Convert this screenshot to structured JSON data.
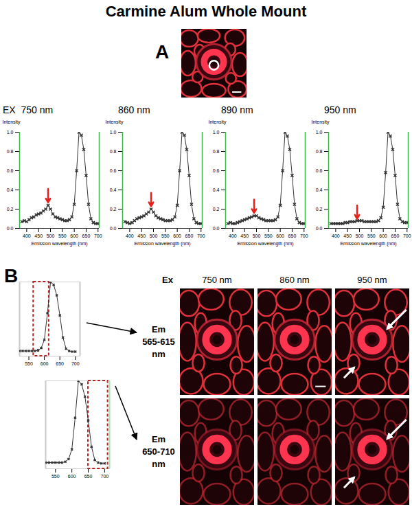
{
  "title": "Carmine Alum Whole Mount",
  "panel_labels": [
    "A",
    "B"
  ],
  "spectra_header_prefix": "EX",
  "chart_data": [
    {
      "type": "line",
      "panel": "A",
      "title": "750 nm",
      "x_label": "Emission wavelength (nm)",
      "y_label": "Intensity",
      "x": [
        380,
        390,
        400,
        410,
        420,
        430,
        440,
        450,
        460,
        470,
        480,
        490,
        500,
        510,
        520,
        530,
        540,
        550,
        560,
        570,
        580,
        590,
        600,
        610,
        620,
        630,
        640,
        650,
        660,
        670,
        680,
        690,
        700
      ],
      "values": [
        0.07,
        0.08,
        0.07,
        0.09,
        0.11,
        0.12,
        0.14,
        0.15,
        0.16,
        0.18,
        0.2,
        0.24,
        0.2,
        0.15,
        0.12,
        0.11,
        0.1,
        0.09,
        0.08,
        0.08,
        0.09,
        0.12,
        0.25,
        0.6,
        1.0,
        0.97,
        0.82,
        0.55,
        0.25,
        0.1,
        0.06,
        0.05,
        0.05
      ],
      "color": "#333333",
      "marker": "x",
      "line_style": "solid",
      "xlim": [
        370,
        705
      ],
      "xticks": [
        400,
        450,
        500,
        550,
        600,
        650,
        700
      ],
      "ylim": [
        0,
        1
      ],
      "yticks": [
        {
          "value": 0,
          "label": "0.0"
        },
        0.2,
        0.4,
        0.6,
        0.8,
        {
          "value": 1,
          "label": "1.0"
        }
      ],
      "arrow": {
        "x": 490,
        "y": 0.27,
        "color": "#e8201c"
      }
    },
    {
      "type": "line",
      "panel": "A",
      "title": "860 nm",
      "x_label": "Emission wavelength (nm)",
      "y_label": "Intensity",
      "x": [
        380,
        390,
        400,
        410,
        420,
        430,
        440,
        450,
        460,
        470,
        480,
        490,
        500,
        510,
        520,
        530,
        540,
        550,
        560,
        570,
        580,
        590,
        600,
        610,
        620,
        630,
        640,
        650,
        660,
        670,
        680,
        690,
        700
      ],
      "values": [
        0.07,
        0.06,
        0.05,
        0.06,
        0.08,
        0.1,
        0.11,
        0.12,
        0.13,
        0.15,
        0.17,
        0.2,
        0.17,
        0.13,
        0.11,
        0.1,
        0.09,
        0.08,
        0.08,
        0.08,
        0.09,
        0.12,
        0.24,
        0.6,
        1.0,
        0.97,
        0.82,
        0.55,
        0.25,
        0.1,
        0.06,
        0.05,
        0.05
      ],
      "color": "#333333",
      "marker": "x",
      "line_style": "solid",
      "xlim": [
        370,
        705
      ],
      "xticks": [
        400,
        450,
        500,
        550,
        600,
        650,
        700
      ],
      "ylim": [
        0,
        1
      ],
      "yticks": [
        {
          "value": 0,
          "label": "0.0"
        },
        0.2,
        0.4,
        0.6,
        0.8,
        {
          "value": 1,
          "label": "1.0"
        }
      ],
      "arrow": {
        "x": 490,
        "y": 0.23,
        "color": "#e8201c"
      }
    },
    {
      "type": "line",
      "panel": "A",
      "title": "890 nm",
      "x_label": "Emission wavelength (nm)",
      "y_label": "Intensity",
      "x": [
        380,
        390,
        400,
        410,
        420,
        430,
        440,
        450,
        460,
        470,
        480,
        490,
        500,
        510,
        520,
        530,
        540,
        550,
        560,
        570,
        580,
        590,
        600,
        610,
        620,
        630,
        640,
        650,
        660,
        670,
        680,
        690,
        700
      ],
      "values": [
        0.05,
        0.06,
        0.05,
        0.05,
        0.06,
        0.07,
        0.08,
        0.09,
        0.1,
        0.11,
        0.12,
        0.13,
        0.13,
        0.11,
        0.1,
        0.09,
        0.08,
        0.08,
        0.08,
        0.08,
        0.09,
        0.12,
        0.24,
        0.6,
        1.0,
        0.96,
        0.82,
        0.55,
        0.25,
        0.1,
        0.06,
        0.05,
        0.05
      ],
      "color": "#333333",
      "marker": "x",
      "line_style": "solid",
      "xlim": [
        370,
        705
      ],
      "xticks": [
        400,
        450,
        500,
        550,
        600,
        650,
        700
      ],
      "ylim": [
        0,
        1
      ],
      "yticks": [
        {
          "value": 0,
          "label": "0.0"
        },
        0.2,
        0.4,
        0.6,
        0.8,
        {
          "value": 1,
          "label": "1.0"
        }
      ],
      "arrow": {
        "x": 490,
        "y": 0.16,
        "color": "#e8201c"
      }
    },
    {
      "type": "line",
      "panel": "A",
      "title": "950 nm",
      "x_label": "Emission wavelength (nm)",
      "y_label": "Intensity",
      "x": [
        380,
        390,
        400,
        410,
        420,
        430,
        440,
        450,
        460,
        470,
        480,
        490,
        500,
        510,
        520,
        530,
        540,
        550,
        560,
        570,
        580,
        590,
        600,
        610,
        620,
        630,
        640,
        650,
        660,
        670,
        680,
        690,
        700
      ],
      "values": [
        0.05,
        0.05,
        0.05,
        0.05,
        0.05,
        0.05,
        0.06,
        0.06,
        0.07,
        0.07,
        0.07,
        0.08,
        0.08,
        0.08,
        0.07,
        0.07,
        0.07,
        0.07,
        0.07,
        0.07,
        0.08,
        0.11,
        0.22,
        0.58,
        1.0,
        0.96,
        0.82,
        0.55,
        0.25,
        0.1,
        0.07,
        0.06,
        0.06
      ],
      "color": "#333333",
      "marker": "x",
      "line_style": "solid",
      "xlim": [
        370,
        705
      ],
      "xticks": [
        400,
        450,
        500,
        550,
        600,
        650,
        700
      ],
      "ylim": [
        0,
        1
      ],
      "yticks": [
        {
          "value": 0,
          "label": "0.0"
        },
        0.2,
        0.4,
        0.6,
        0.8,
        {
          "value": 1,
          "label": "1.0"
        }
      ],
      "arrow": {
        "x": 490,
        "y": 0.1,
        "color": "#e8201c"
      }
    },
    {
      "type": "line",
      "panel": "B",
      "x": [
        520,
        530,
        540,
        550,
        560,
        570,
        580,
        590,
        600,
        610,
        620,
        630,
        640,
        650,
        660,
        670,
        680,
        690,
        700
      ],
      "values": [
        0.07,
        0.07,
        0.07,
        0.07,
        0.07,
        0.07,
        0.08,
        0.11,
        0.22,
        0.58,
        1.0,
        0.96,
        0.82,
        0.55,
        0.25,
        0.1,
        0.07,
        0.06,
        0.06
      ],
      "color": "#333333",
      "marker": "x",
      "line_style": "solid",
      "xlim": [
        520,
        715
      ],
      "xticks": [
        550,
        600,
        650,
        700
      ],
      "ylim": [
        0,
        1
      ],
      "yticks": [],
      "tick_labels": "x",
      "highlight": {
        "x_range": [
          565,
          615
        ],
        "color": "#b22222"
      }
    },
    {
      "type": "line",
      "panel": "B",
      "x": [
        520,
        530,
        540,
        550,
        560,
        570,
        580,
        590,
        600,
        610,
        620,
        630,
        640,
        650,
        660,
        670,
        680,
        690,
        700
      ],
      "values": [
        0.07,
        0.07,
        0.07,
        0.07,
        0.07,
        0.07,
        0.08,
        0.11,
        0.22,
        0.58,
        1.0,
        0.96,
        0.82,
        0.55,
        0.25,
        0.1,
        0.07,
        0.06,
        0.06
      ],
      "color": "#333333",
      "marker": "x",
      "line_style": "solid",
      "xlim": [
        520,
        715
      ],
      "xticks": [
        550,
        600,
        650,
        700
      ],
      "ylim": [
        0,
        1
      ],
      "yticks": [],
      "tick_labels": "x",
      "highlight": {
        "x_range": [
          650,
          710
        ],
        "color": "#b22222"
      }
    }
  ],
  "image_grid": {
    "prefix": "Ex",
    "columns": [
      "750 nm",
      "860 nm",
      "950 nm"
    ],
    "rows": [
      [
        "Em",
        "565-615",
        "nm"
      ],
      [
        "Em",
        "650-710",
        "nm"
      ]
    ]
  }
}
